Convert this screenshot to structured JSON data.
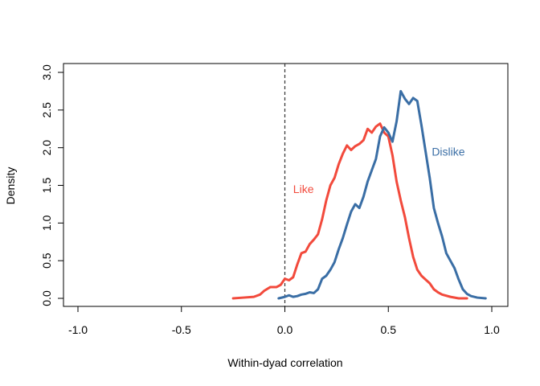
{
  "chart_data": {
    "type": "line",
    "xlabel": "Within-dyad correlation",
    "ylabel": "Density",
    "xlim": [
      -1.0,
      1.0
    ],
    "ylim": [
      0.0,
      3.0
    ],
    "x_ticks": [
      "-1.0",
      "-0.5",
      "0.0",
      "0.5",
      "1.0"
    ],
    "x_tick_values": [
      -1.0,
      -0.5,
      0.0,
      0.5,
      1.0
    ],
    "y_ticks": [
      "0.0",
      "0.5",
      "1.0",
      "1.5",
      "2.0",
      "2.5",
      "3.0"
    ],
    "y_tick_values": [
      0.0,
      0.5,
      1.0,
      1.5,
      2.0,
      2.5,
      3.0
    ],
    "grid": false,
    "reference_line": {
      "x": 0.0,
      "style": "dashed",
      "color": "#333333"
    },
    "series": [
      {
        "name": "Like",
        "color": "#F24A3C",
        "points": [
          [
            -0.25,
            0.0
          ],
          [
            -0.2,
            0.01
          ],
          [
            -0.15,
            0.02
          ],
          [
            -0.12,
            0.05
          ],
          [
            -0.1,
            0.1
          ],
          [
            -0.07,
            0.15
          ],
          [
            -0.04,
            0.15
          ],
          [
            -0.02,
            0.18
          ],
          [
            0.0,
            0.26
          ],
          [
            0.02,
            0.24
          ],
          [
            0.04,
            0.28
          ],
          [
            0.06,
            0.45
          ],
          [
            0.08,
            0.6
          ],
          [
            0.1,
            0.62
          ],
          [
            0.12,
            0.72
          ],
          [
            0.14,
            0.78
          ],
          [
            0.16,
            0.85
          ],
          [
            0.18,
            1.05
          ],
          [
            0.2,
            1.3
          ],
          [
            0.22,
            1.5
          ],
          [
            0.24,
            1.6
          ],
          [
            0.26,
            1.78
          ],
          [
            0.28,
            1.92
          ],
          [
            0.3,
            2.03
          ],
          [
            0.32,
            1.97
          ],
          [
            0.34,
            2.02
          ],
          [
            0.36,
            2.05
          ],
          [
            0.38,
            2.1
          ],
          [
            0.4,
            2.25
          ],
          [
            0.42,
            2.2
          ],
          [
            0.44,
            2.28
          ],
          [
            0.46,
            2.32
          ],
          [
            0.48,
            2.2
          ],
          [
            0.5,
            2.15
          ],
          [
            0.52,
            1.9
          ],
          [
            0.54,
            1.55
          ],
          [
            0.56,
            1.3
          ],
          [
            0.58,
            1.08
          ],
          [
            0.6,
            0.8
          ],
          [
            0.62,
            0.55
          ],
          [
            0.64,
            0.38
          ],
          [
            0.66,
            0.3
          ],
          [
            0.68,
            0.25
          ],
          [
            0.7,
            0.2
          ],
          [
            0.72,
            0.12
          ],
          [
            0.74,
            0.08
          ],
          [
            0.76,
            0.05
          ],
          [
            0.8,
            0.02
          ],
          [
            0.84,
            0.0
          ],
          [
            0.88,
            0.0
          ]
        ]
      },
      {
        "name": "Dislike",
        "color": "#3A6EA5",
        "points": [
          [
            -0.03,
            0.0
          ],
          [
            0.0,
            0.02
          ],
          [
            0.02,
            0.04
          ],
          [
            0.04,
            0.02
          ],
          [
            0.06,
            0.03
          ],
          [
            0.08,
            0.05
          ],
          [
            0.1,
            0.06
          ],
          [
            0.12,
            0.08
          ],
          [
            0.14,
            0.07
          ],
          [
            0.16,
            0.12
          ],
          [
            0.18,
            0.26
          ],
          [
            0.2,
            0.3
          ],
          [
            0.22,
            0.38
          ],
          [
            0.24,
            0.48
          ],
          [
            0.26,
            0.65
          ],
          [
            0.28,
            0.8
          ],
          [
            0.3,
            0.98
          ],
          [
            0.32,
            1.15
          ],
          [
            0.34,
            1.25
          ],
          [
            0.36,
            1.2
          ],
          [
            0.38,
            1.35
          ],
          [
            0.4,
            1.55
          ],
          [
            0.42,
            1.7
          ],
          [
            0.44,
            1.85
          ],
          [
            0.46,
            2.15
          ],
          [
            0.48,
            2.27
          ],
          [
            0.5,
            2.2
          ],
          [
            0.52,
            2.08
          ],
          [
            0.54,
            2.35
          ],
          [
            0.56,
            2.75
          ],
          [
            0.58,
            2.65
          ],
          [
            0.6,
            2.58
          ],
          [
            0.62,
            2.66
          ],
          [
            0.64,
            2.62
          ],
          [
            0.66,
            2.3
          ],
          [
            0.68,
            1.95
          ],
          [
            0.7,
            1.6
          ],
          [
            0.72,
            1.2
          ],
          [
            0.74,
            1.0
          ],
          [
            0.76,
            0.82
          ],
          [
            0.78,
            0.6
          ],
          [
            0.8,
            0.5
          ],
          [
            0.82,
            0.4
          ],
          [
            0.84,
            0.25
          ],
          [
            0.86,
            0.12
          ],
          [
            0.88,
            0.06
          ],
          [
            0.9,
            0.03
          ],
          [
            0.93,
            0.01
          ],
          [
            0.97,
            0.0
          ]
        ]
      }
    ],
    "annotations": [
      {
        "text": "Like",
        "x": 0.04,
        "y": 1.45,
        "color": "#F24A3C"
      },
      {
        "text": "Dislike",
        "x": 0.71,
        "y": 1.95,
        "color": "#3A6EA5"
      }
    ]
  }
}
